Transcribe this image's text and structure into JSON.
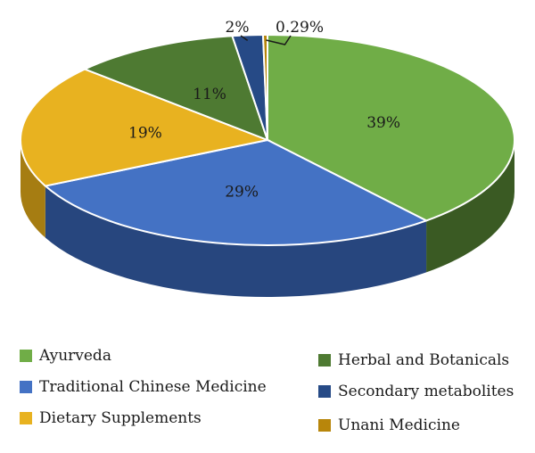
{
  "chart_data": {
    "type": "pie",
    "title": "",
    "series": [
      {
        "name": "Ayurveda",
        "value": 39,
        "label": "39%",
        "color": "#70ad47",
        "side_color": "#3a5a23"
      },
      {
        "name": "Traditional Chinese Medicine",
        "value": 29,
        "label": "29%",
        "color": "#4472c4",
        "side_color": "#27467e"
      },
      {
        "name": "Dietary Supplements",
        "value": 19,
        "label": "19%",
        "color": "#e8b220",
        "side_color": "#a67d12"
      },
      {
        "name": "Herbal and Botanicals",
        "value": 11,
        "label": "11%",
        "color": "#4e7a32",
        "side_color": "#2d4a1b"
      },
      {
        "name": "Secondary metabolites",
        "value": 2,
        "label": "2%",
        "color": "#264a86",
        "side_color": "#16305a"
      },
      {
        "name": "Unani Medicine",
        "value": 0.29,
        "label": "0.29%",
        "color": "#b8860b",
        "side_color": "#7a5a08"
      }
    ],
    "legend_position": "bottom"
  }
}
